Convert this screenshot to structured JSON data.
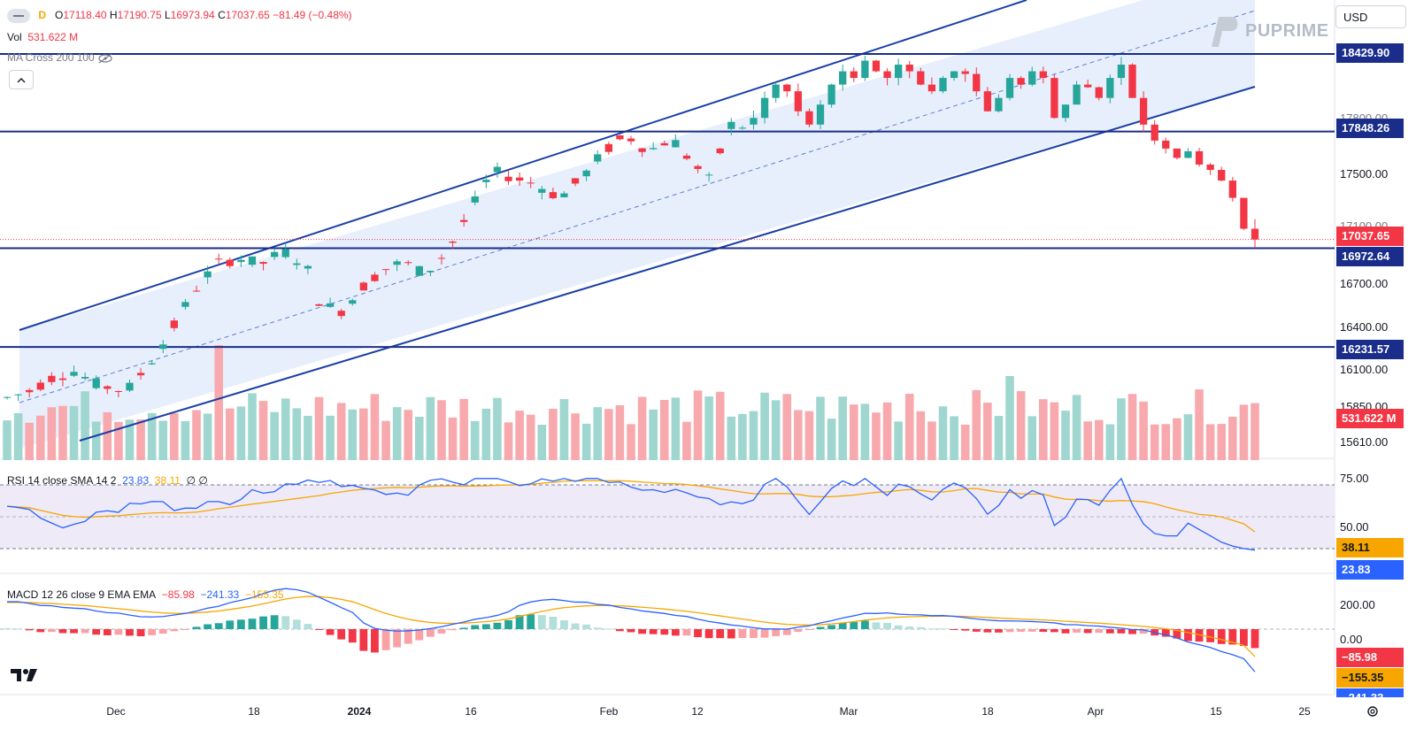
{
  "header": {
    "timeframe": "D",
    "open_label": "O",
    "open": "17118.40",
    "high_label": "H",
    "high": "17190.75",
    "low_label": "L",
    "low": "16973.94",
    "close_label": "C",
    "close": "17037.65",
    "change": "−81.49 (−0.48%)",
    "vol_label": "Vol",
    "vol_value": "531.622 M",
    "ma_label": "MA Cross 200 100",
    "eye_icon": "eye-off-icon"
  },
  "currency": "USD",
  "logo": {
    "text": "PUPRIME"
  },
  "collapse_icon": "chevron-up-icon",
  "price_axis": {
    "ticks": [
      "18429.90",
      "17848.26",
      "17500.00",
      "17100.00",
      "17037.65",
      "16972.64",
      "16700.00",
      "16400.00",
      "16231.57",
      "16100.00",
      "15850.00",
      "15610.00"
    ],
    "partial_ticks": [
      "17800.00",
      "17100.00"
    ],
    "tags": {
      "level_1": "18429.90",
      "level_2": "17848.26",
      "last_price": "17037.65",
      "level_3": "16972.64",
      "level_4": "16231.57",
      "volume": "531.622 M"
    }
  },
  "rsi": {
    "label": "RSI",
    "params": "14 close SMA 14 2",
    "value_rsi": "23.83",
    "value_sma": "38.11",
    "extra1": "∅",
    "extra2": "∅",
    "ticks": [
      "75.00",
      "50.00"
    ]
  },
  "macd": {
    "label": "MACD",
    "params": "12 26 close 9 EMA EMA",
    "hist": "−85.98",
    "macd": "−241.33",
    "signal": "−155.35",
    "ticks": [
      "200.00",
      "0.00"
    ]
  },
  "x_axis": {
    "labels": [
      "Dec",
      "18",
      "2024",
      "16",
      "Feb",
      "12",
      "Mar",
      "18",
      "Apr",
      "15",
      "25"
    ]
  },
  "colors": {
    "up": "#26a69a",
    "down": "#f23645",
    "level_line": "#1a2d8a",
    "channel": "#1a3fa6",
    "rsi_line": "#2962ff",
    "rsi_sma": "#f7a600"
  },
  "chart_data": {
    "type": "candlestick",
    "instrument_timeframe": "D",
    "levels": [
      18429.9,
      17848.26,
      16972.64,
      16231.57
    ],
    "last_close": 17037.65,
    "ohlc_last": {
      "open": 17118.4,
      "high": 17190.75,
      "low": 16973.94,
      "close": 17037.65
    },
    "price_range": [
      15450,
      18900
    ],
    "rsi_last": 23.83,
    "rsi_sma_last": 38.11,
    "macd_last": -241.33,
    "macd_signal_last": -155.35,
    "macd_hist_last": -85.98
  }
}
